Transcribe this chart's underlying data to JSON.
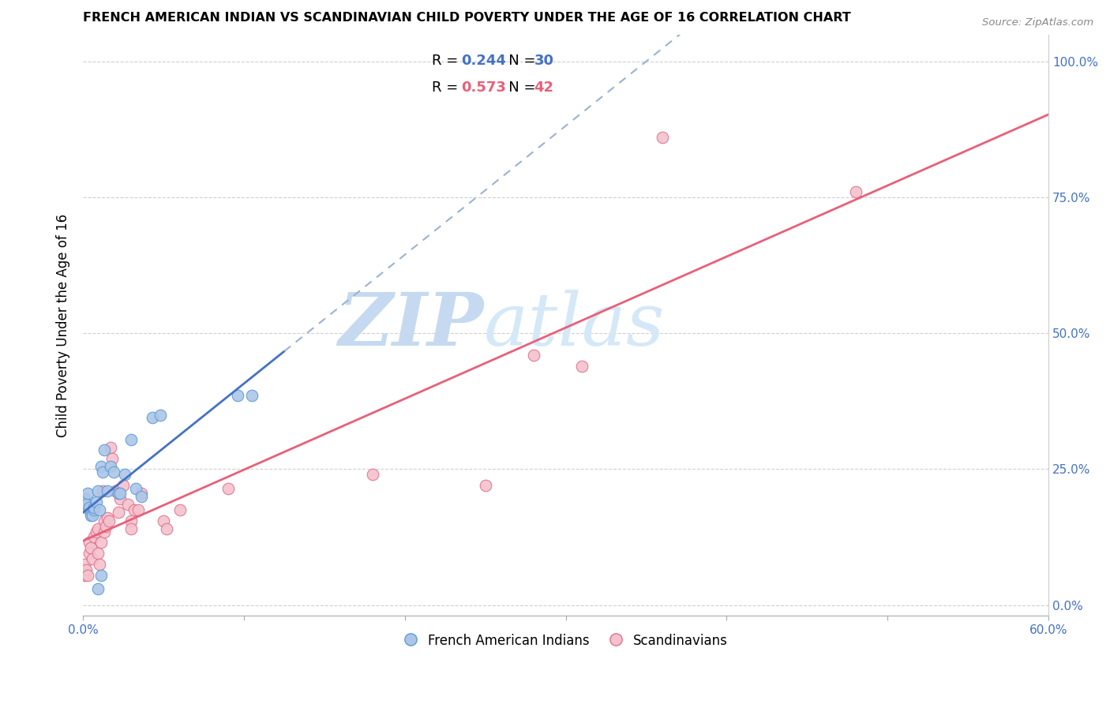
{
  "title": "FRENCH AMERICAN INDIAN VS SCANDINAVIAN CHILD POVERTY UNDER THE AGE OF 16 CORRELATION CHART",
  "source": "Source: ZipAtlas.com",
  "x_tick_positions": [
    0.0,
    0.1,
    0.2,
    0.3,
    0.4,
    0.5,
    0.6
  ],
  "x_tick_labels_show": [
    "0.0%",
    "",
    "",
    "",
    "",
    "",
    "60.0%"
  ],
  "ylabel_ticks": [
    "0.0%",
    "25.0%",
    "50.0%",
    "75.0%",
    "100.0%"
  ],
  "ylabel_label": "Child Poverty Under the Age of 16",
  "legend_labels": [
    "French American Indians",
    "Scandinavians"
  ],
  "r_blue": 0.244,
  "n_blue": 30,
  "r_pink": 0.573,
  "n_pink": 42,
  "watermark_zip": "ZIP",
  "watermark_atlas": "atlas",
  "blue_scatter_color": "#adc6e8",
  "blue_edge_color": "#5b9bd5",
  "pink_scatter_color": "#f4c2cc",
  "pink_edge_color": "#e07090",
  "blue_line_color": "#4472c4",
  "pink_line_color": "#e8607a",
  "dashed_line_color": "#9ab3d0",
  "blue_scatter": [
    [
      0.001,
      0.195
    ],
    [
      0.002,
      0.185
    ],
    [
      0.003,
      0.205
    ],
    [
      0.004,
      0.175
    ],
    [
      0.004,
      0.18
    ],
    [
      0.005,
      0.165
    ],
    [
      0.006,
      0.165
    ],
    [
      0.007,
      0.175
    ],
    [
      0.007,
      0.18
    ],
    [
      0.008,
      0.19
    ],
    [
      0.009,
      0.21
    ],
    [
      0.01,
      0.175
    ],
    [
      0.011,
      0.255
    ],
    [
      0.012,
      0.245
    ],
    [
      0.013,
      0.285
    ],
    [
      0.015,
      0.21
    ],
    [
      0.017,
      0.255
    ],
    [
      0.019,
      0.245
    ],
    [
      0.022,
      0.205
    ],
    [
      0.023,
      0.205
    ],
    [
      0.026,
      0.24
    ],
    [
      0.03,
      0.305
    ],
    [
      0.033,
      0.215
    ],
    [
      0.036,
      0.2
    ],
    [
      0.043,
      0.345
    ],
    [
      0.048,
      0.35
    ],
    [
      0.096,
      0.385
    ],
    [
      0.105,
      0.385
    ],
    [
      0.009,
      0.03
    ],
    [
      0.011,
      0.055
    ]
  ],
  "pink_scatter": [
    [
      0.001,
      0.055
    ],
    [
      0.001,
      0.075
    ],
    [
      0.002,
      0.065
    ],
    [
      0.003,
      0.055
    ],
    [
      0.004,
      0.115
    ],
    [
      0.004,
      0.095
    ],
    [
      0.005,
      0.105
    ],
    [
      0.006,
      0.085
    ],
    [
      0.007,
      0.125
    ],
    [
      0.008,
      0.135
    ],
    [
      0.009,
      0.14
    ],
    [
      0.009,
      0.095
    ],
    [
      0.01,
      0.075
    ],
    [
      0.011,
      0.115
    ],
    [
      0.012,
      0.21
    ],
    [
      0.013,
      0.155
    ],
    [
      0.013,
      0.135
    ],
    [
      0.014,
      0.145
    ],
    [
      0.015,
      0.16
    ],
    [
      0.016,
      0.155
    ],
    [
      0.017,
      0.29
    ],
    [
      0.018,
      0.27
    ],
    [
      0.02,
      0.21
    ],
    [
      0.022,
      0.17
    ],
    [
      0.023,
      0.195
    ],
    [
      0.025,
      0.22
    ],
    [
      0.028,
      0.185
    ],
    [
      0.03,
      0.155
    ],
    [
      0.03,
      0.14
    ],
    [
      0.032,
      0.175
    ],
    [
      0.034,
      0.175
    ],
    [
      0.036,
      0.205
    ],
    [
      0.05,
      0.155
    ],
    [
      0.052,
      0.14
    ],
    [
      0.06,
      0.175
    ],
    [
      0.09,
      0.215
    ],
    [
      0.18,
      0.24
    ],
    [
      0.25,
      0.22
    ],
    [
      0.28,
      0.46
    ],
    [
      0.31,
      0.44
    ],
    [
      0.36,
      0.86
    ],
    [
      0.48,
      0.76
    ]
  ],
  "xmin": 0.0,
  "xmax": 0.6,
  "ymin": -0.02,
  "ymax": 1.05,
  "blue_line_xstart": 0.0,
  "blue_line_xend": 0.125,
  "pink_line_xstart": 0.0,
  "pink_line_xend": 0.6,
  "grid_color": "#d0d0d0",
  "watermark_zip_color": "#c5daf0",
  "watermark_atlas_color": "#d5e8f8"
}
